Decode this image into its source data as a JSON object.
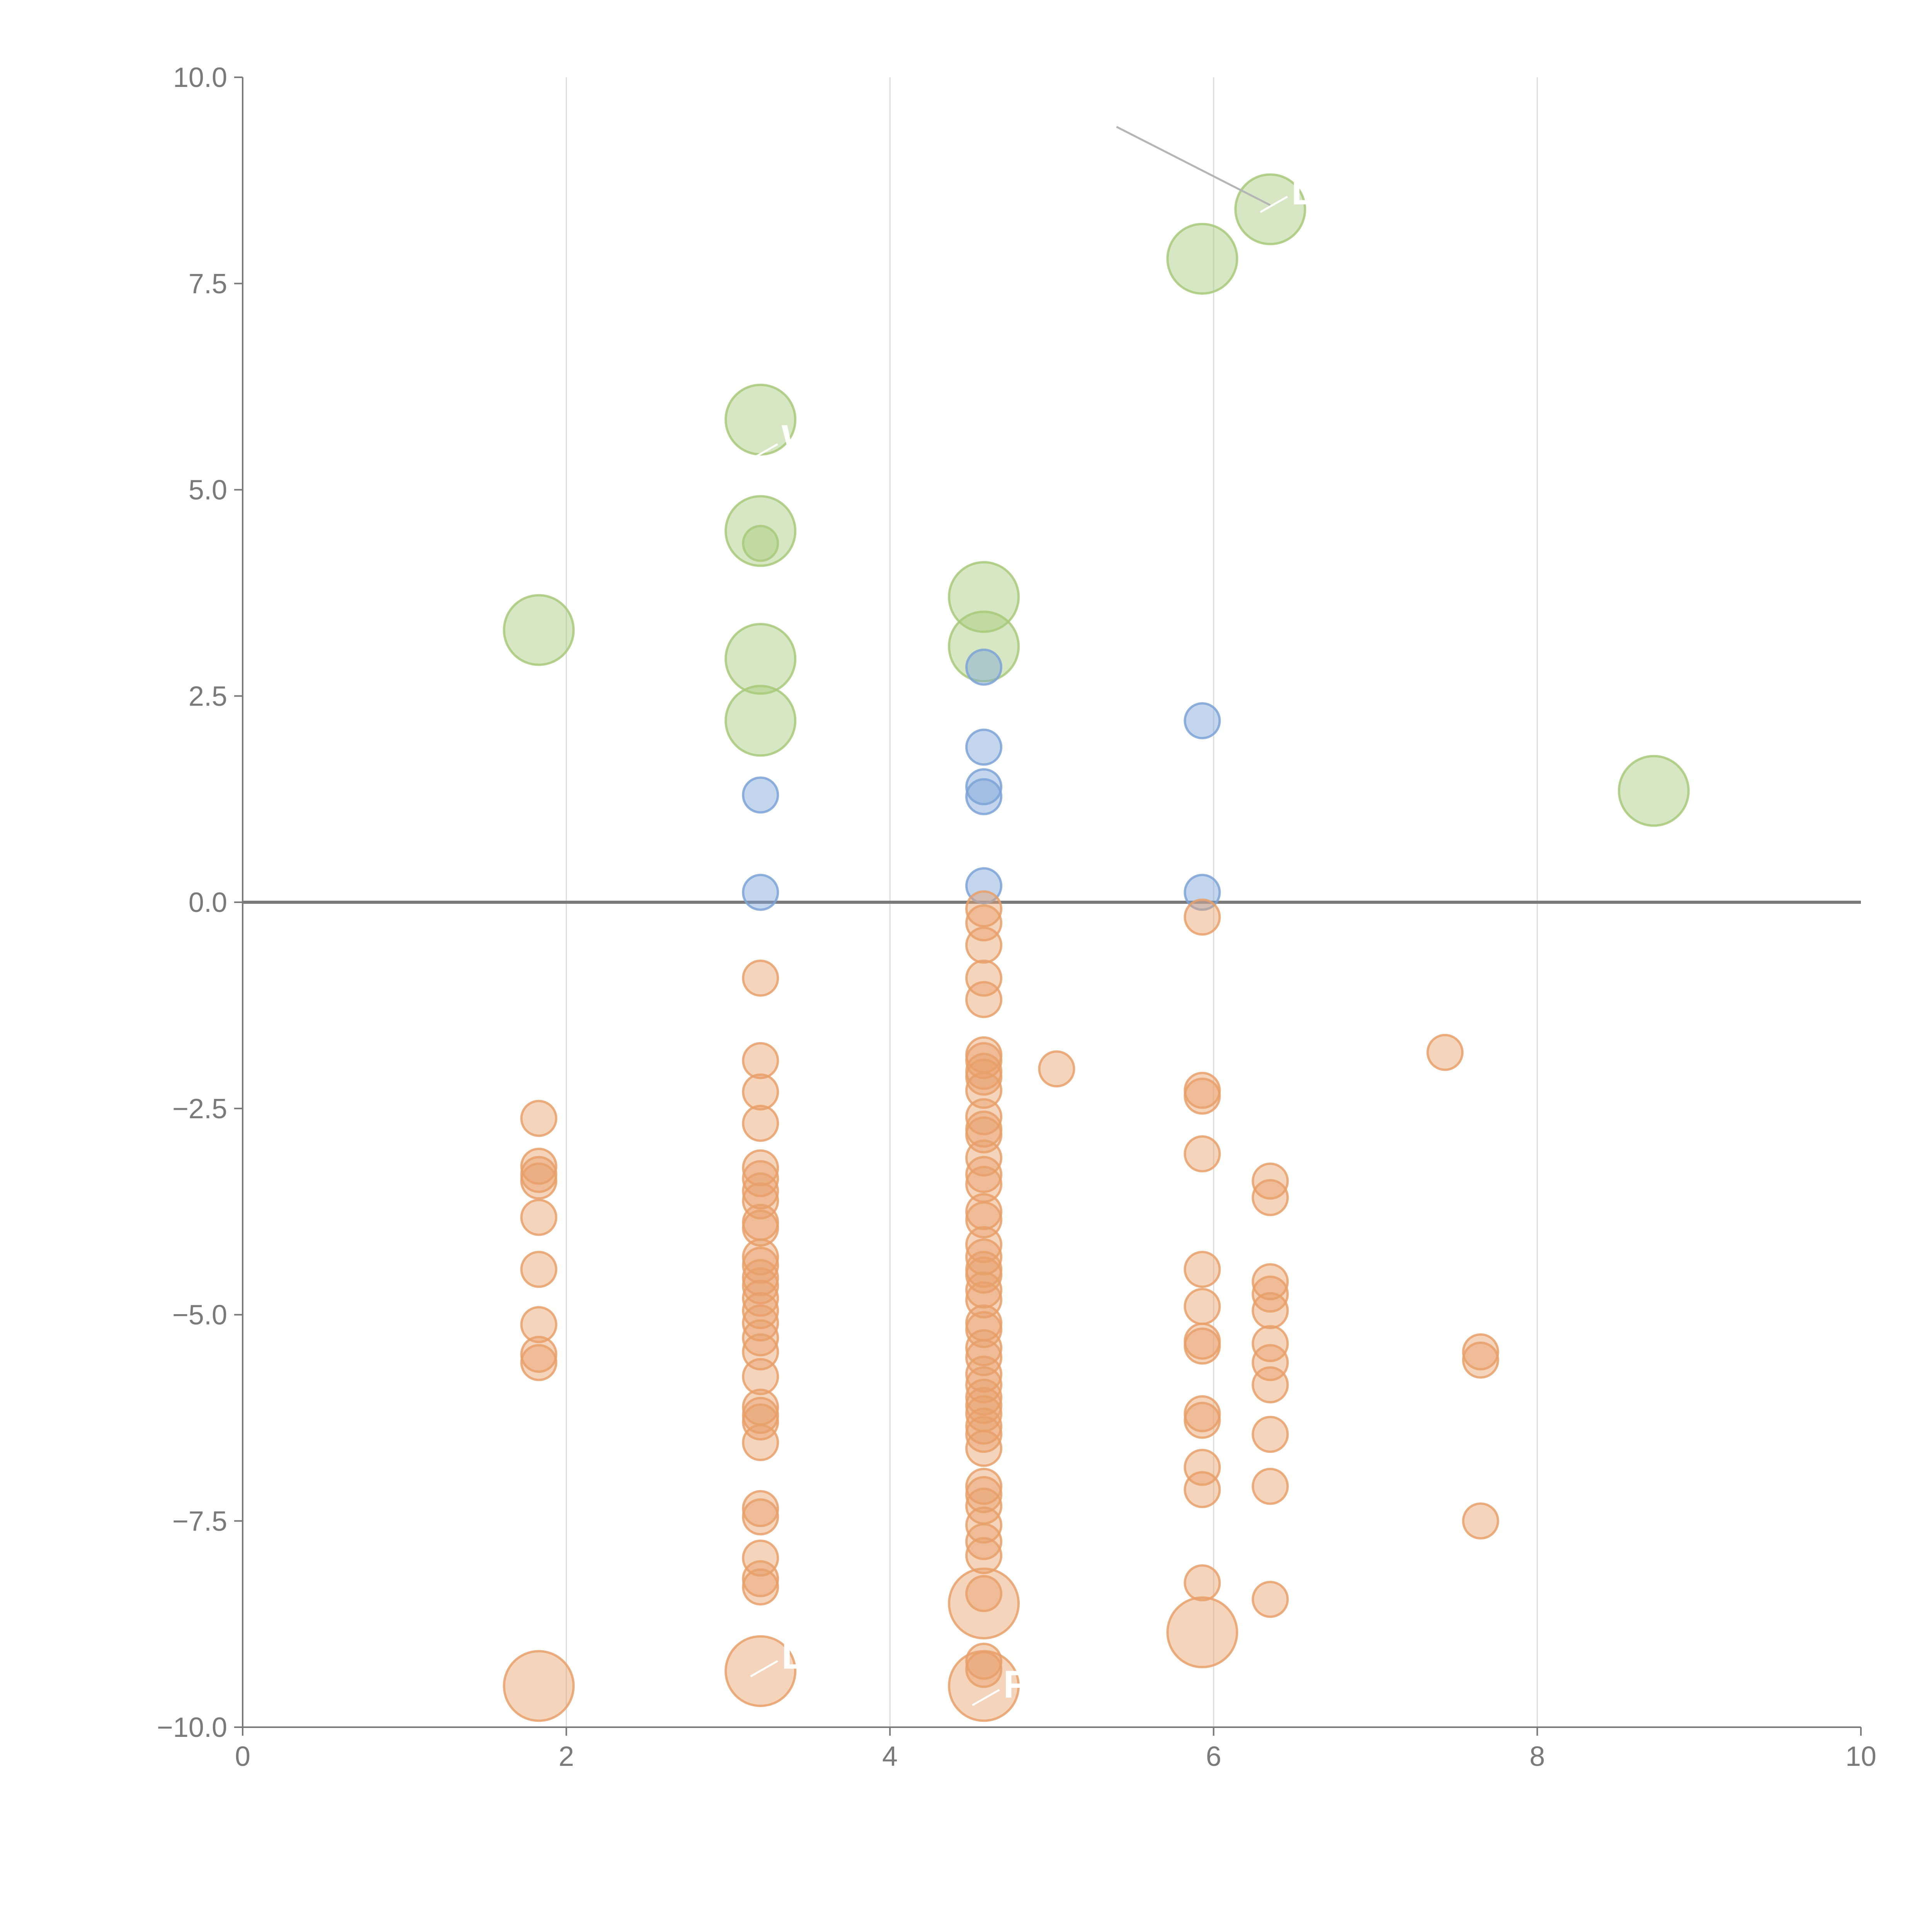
{
  "chart_data": {
    "type": "scatter",
    "title": "",
    "xlabel": "",
    "ylabel": "",
    "xlim": [
      0,
      10
    ],
    "ylim": [
      -10,
      10
    ],
    "grid": "vertical",
    "x_ticks": [
      "0",
      "2",
      "4",
      "6",
      "8",
      "10"
    ],
    "y_ticks": [
      "−10.0",
      "−7.5",
      "−5.0",
      "−2.5",
      "0.0",
      "2.5",
      "5.0",
      "7.5",
      "10.0"
    ],
    "reference_line_y": 0,
    "colors": {
      "green": "#a8c97a",
      "blue": "#7ba3d6",
      "orange": "#e8a06a",
      "grid": "#dcdcdc",
      "axis": "#7a7a7a"
    },
    "annotation": {
      "from": [
        5.4,
        9.4
      ],
      "to": [
        6.35,
        8.45
      ]
    },
    "series": [
      {
        "name": "green",
        "color": "#a8c97a",
        "size": "large",
        "points": [
          [
            1.83,
            3.3
          ],
          [
            3.2,
            5.85
          ],
          [
            3.2,
            4.5
          ],
          [
            3.2,
            2.95
          ],
          [
            3.2,
            2.2
          ],
          [
            4.58,
            3.7
          ],
          [
            4.58,
            3.1
          ],
          [
            5.93,
            7.8
          ],
          [
            6.35,
            8.4
          ],
          [
            8.72,
            1.35
          ]
        ]
      },
      {
        "name": "green-small",
        "color": "#a8c97a",
        "size": "small",
        "points": [
          [
            3.2,
            4.35
          ]
        ]
      },
      {
        "name": "blue",
        "color": "#7ba3d6",
        "size": "small",
        "points": [
          [
            3.2,
            1.3
          ],
          [
            3.2,
            0.12
          ],
          [
            4.58,
            2.85
          ],
          [
            4.58,
            1.88
          ],
          [
            4.58,
            1.4
          ],
          [
            4.58,
            1.28
          ],
          [
            4.58,
            0.2
          ],
          [
            5.93,
            2.2
          ],
          [
            5.93,
            0.12
          ]
        ]
      },
      {
        "name": "orange",
        "color": "#e8a06a",
        "size": "small",
        "points": [
          [
            1.83,
            -2.62
          ],
          [
            1.83,
            -3.2
          ],
          [
            1.83,
            -3.3
          ],
          [
            1.83,
            -3.38
          ],
          [
            1.83,
            -3.82
          ],
          [
            1.83,
            -4.45
          ],
          [
            1.83,
            -5.12
          ],
          [
            1.83,
            -5.48
          ],
          [
            1.83,
            -5.58
          ],
          [
            3.2,
            -0.92
          ],
          [
            3.2,
            -1.92
          ],
          [
            3.2,
            -2.3
          ],
          [
            3.2,
            -2.68
          ],
          [
            3.2,
            -3.22
          ],
          [
            3.2,
            -3.35
          ],
          [
            3.2,
            -3.5
          ],
          [
            3.2,
            -3.62
          ],
          [
            3.2,
            -3.88
          ],
          [
            3.2,
            -3.95
          ],
          [
            3.2,
            -4.3
          ],
          [
            3.2,
            -4.4
          ],
          [
            3.2,
            -4.55
          ],
          [
            3.2,
            -4.65
          ],
          [
            3.2,
            -4.8
          ],
          [
            3.2,
            -4.95
          ],
          [
            3.2,
            -5.1
          ],
          [
            3.2,
            -5.28
          ],
          [
            3.2,
            -5.45
          ],
          [
            3.2,
            -5.75
          ],
          [
            3.2,
            -6.12
          ],
          [
            3.2,
            -6.22
          ],
          [
            3.2,
            -6.3
          ],
          [
            3.2,
            -6.55
          ],
          [
            3.2,
            -7.35
          ],
          [
            3.2,
            -7.45
          ],
          [
            3.2,
            -7.95
          ],
          [
            3.2,
            -8.2
          ],
          [
            3.2,
            -8.3
          ],
          [
            4.58,
            -0.08
          ],
          [
            4.58,
            -0.25
          ],
          [
            4.58,
            -0.52
          ],
          [
            4.58,
            -0.92
          ],
          [
            4.58,
            -1.18
          ],
          [
            4.58,
            -1.85
          ],
          [
            4.58,
            -1.92
          ],
          [
            4.58,
            -2.05
          ],
          [
            4.58,
            -2.12
          ],
          [
            4.58,
            -2.28
          ],
          [
            4.58,
            -2.6
          ],
          [
            4.58,
            -2.75
          ],
          [
            4.58,
            -2.82
          ],
          [
            4.58,
            -3.1
          ],
          [
            4.58,
            -3.3
          ],
          [
            4.58,
            -3.42
          ],
          [
            4.58,
            -3.75
          ],
          [
            4.58,
            -3.85
          ],
          [
            4.58,
            -4.15
          ],
          [
            4.58,
            -4.3
          ],
          [
            4.58,
            -4.45
          ],
          [
            4.58,
            -4.52
          ],
          [
            4.58,
            -4.7
          ],
          [
            4.58,
            -4.82
          ],
          [
            4.58,
            -5.1
          ],
          [
            4.58,
            -5.18
          ],
          [
            4.58,
            -5.4
          ],
          [
            4.58,
            -5.52
          ],
          [
            4.58,
            -5.72
          ],
          [
            4.58,
            -5.85
          ],
          [
            4.58,
            -6.0
          ],
          [
            4.58,
            -6.1
          ],
          [
            4.58,
            -6.2
          ],
          [
            4.58,
            -6.35
          ],
          [
            4.58,
            -6.45
          ],
          [
            4.58,
            -6.62
          ],
          [
            4.58,
            -7.08
          ],
          [
            4.58,
            -7.18
          ],
          [
            4.58,
            -7.32
          ],
          [
            4.58,
            -7.55
          ],
          [
            4.58,
            -7.75
          ],
          [
            4.58,
            -7.92
          ],
          [
            4.58,
            -8.38
          ],
          [
            4.58,
            -9.2
          ],
          [
            4.58,
            -9.3
          ],
          [
            5.03,
            -2.02
          ],
          [
            5.93,
            -0.18
          ],
          [
            5.93,
            -2.28
          ],
          [
            5.93,
            -2.35
          ],
          [
            5.93,
            -3.05
          ],
          [
            5.93,
            -4.45
          ],
          [
            5.93,
            -4.9
          ],
          [
            5.93,
            -5.32
          ],
          [
            5.93,
            -5.38
          ],
          [
            5.93,
            -6.2
          ],
          [
            5.93,
            -6.28
          ],
          [
            5.93,
            -6.85
          ],
          [
            5.93,
            -7.12
          ],
          [
            5.93,
            -8.25
          ],
          [
            6.35,
            -3.38
          ],
          [
            6.35,
            -3.58
          ],
          [
            6.35,
            -4.6
          ],
          [
            6.35,
            -4.75
          ],
          [
            6.35,
            -4.95
          ],
          [
            6.35,
            -5.35
          ],
          [
            6.35,
            -5.58
          ],
          [
            6.35,
            -5.85
          ],
          [
            6.35,
            -6.45
          ],
          [
            6.35,
            -7.08
          ],
          [
            6.35,
            -8.45
          ],
          [
            7.43,
            -1.82
          ],
          [
            7.65,
            -5.45
          ],
          [
            7.65,
            -5.55
          ],
          [
            7.65,
            -7.5
          ]
        ]
      },
      {
        "name": "orange-large",
        "color": "#e8a06a",
        "size": "large",
        "points": [
          [
            1.83,
            -9.5
          ],
          [
            3.2,
            -9.32
          ],
          [
            4.58,
            -8.5
          ],
          [
            4.58,
            -9.5
          ],
          [
            5.93,
            -8.85
          ]
        ]
      }
    ],
    "point_labels": [
      {
        "text": "L",
        "x": 6.48,
        "y": 8.6
      },
      {
        "text": "W",
        "x": 3.33,
        "y": 5.6
      },
      {
        "text": "D",
        "x": 3.33,
        "y": -9.15
      },
      {
        "text": "F",
        "x": 4.7,
        "y": -9.5
      }
    ]
  }
}
